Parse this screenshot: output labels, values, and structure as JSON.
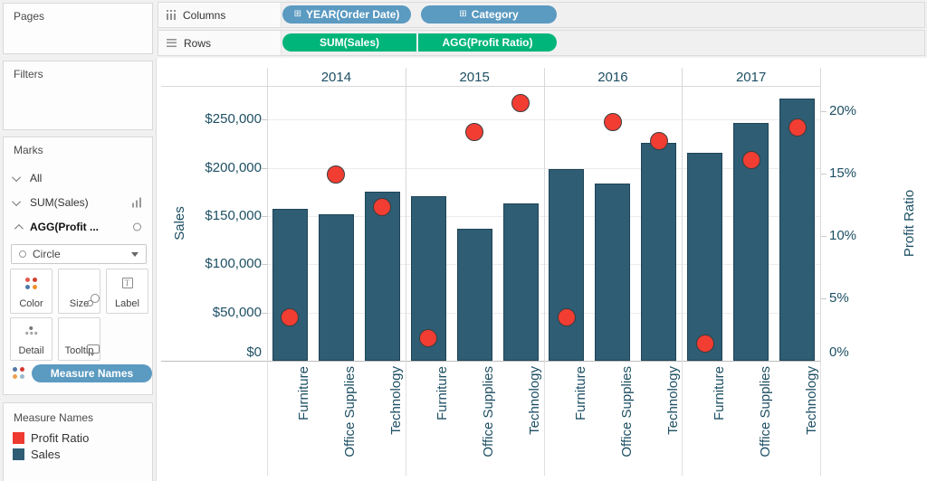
{
  "ui_colors": {
    "dimension_pill_blue": "#5b9ac1",
    "measure_pill_green": "#00b57a",
    "chart_text_blue": "#1d4f63",
    "bar_fill": "#2e5d74",
    "circle_fill": "#f23d33",
    "circle_border": "#3d3d3d"
  },
  "sidebar": {
    "pages": {
      "title": "Pages"
    },
    "filters": {
      "title": "Filters"
    },
    "marks": {
      "title": "Marks",
      "layers": [
        {
          "label": "All"
        },
        {
          "label": "SUM(Sales)"
        },
        {
          "label": "AGG(Profit ..."
        }
      ],
      "mark_type": "Circle",
      "buttons": {
        "color": "Color",
        "size": "Size",
        "label": "Label",
        "detail": "Detail",
        "tooltip": "Tooltip"
      },
      "encoding_pill": "Measure Names"
    },
    "legend": {
      "title": "Measure Names",
      "items": [
        {
          "label": "Profit Ratio",
          "color": "#ee3a30"
        },
        {
          "label": "Sales",
          "color": "#2e5d74"
        }
      ]
    }
  },
  "shelves": {
    "columns": {
      "label": "Columns",
      "pills": [
        {
          "label": "YEAR(Order Date)"
        },
        {
          "label": "Category"
        }
      ]
    },
    "rows": {
      "label": "Rows",
      "pills": [
        {
          "label": "SUM(Sales)"
        },
        {
          "label": "AGG(Profit Ratio)"
        }
      ]
    }
  },
  "chart_data": {
    "type": "bar",
    "secondary_type": "scatter",
    "dual_axis": true,
    "pane_years": [
      "2014",
      "2015",
      "2016",
      "2017"
    ],
    "categories": [
      "Furniture",
      "Office Supplies",
      "Technology"
    ],
    "series": [
      {
        "name": "Sales",
        "mark": "bar",
        "axis": "left",
        "color": "#2e5d74",
        "values": [
          [
            157193,
            151776,
            175278
          ],
          [
            170518,
            137233,
            162781
          ],
          [
            198901,
            183940,
            226364
          ],
          [
            215387,
            246524,
            271730
          ]
        ]
      },
      {
        "name": "Profit Ratio",
        "mark": "circle",
        "axis": "right",
        "color": "#f23d33",
        "values_percent": [
          [
            3.5,
            14.9,
            12.3
          ],
          [
            1.8,
            18.3,
            20.6
          ],
          [
            3.5,
            19.1,
            17.6
          ],
          [
            1.4,
            16.1,
            18.7
          ]
        ]
      }
    ],
    "left_axis": {
      "title": "Sales",
      "tick_labels": [
        "$0",
        "$50,000",
        "$100,000",
        "$150,000",
        "$200,000",
        "$250,000"
      ],
      "tick_values": [
        0,
        50000,
        100000,
        150000,
        200000,
        250000
      ],
      "range": [
        0,
        285000
      ]
    },
    "right_axis": {
      "title": "Profit Ratio",
      "tick_labels": [
        "0%",
        "5%",
        "10%",
        "15%",
        "20%"
      ],
      "tick_values": [
        0,
        5,
        10,
        15,
        20
      ],
      "range": [
        0,
        22
      ]
    },
    "grid": "horizontal gridlines on left axis ticks",
    "legend_position": "bottom-left panel"
  }
}
